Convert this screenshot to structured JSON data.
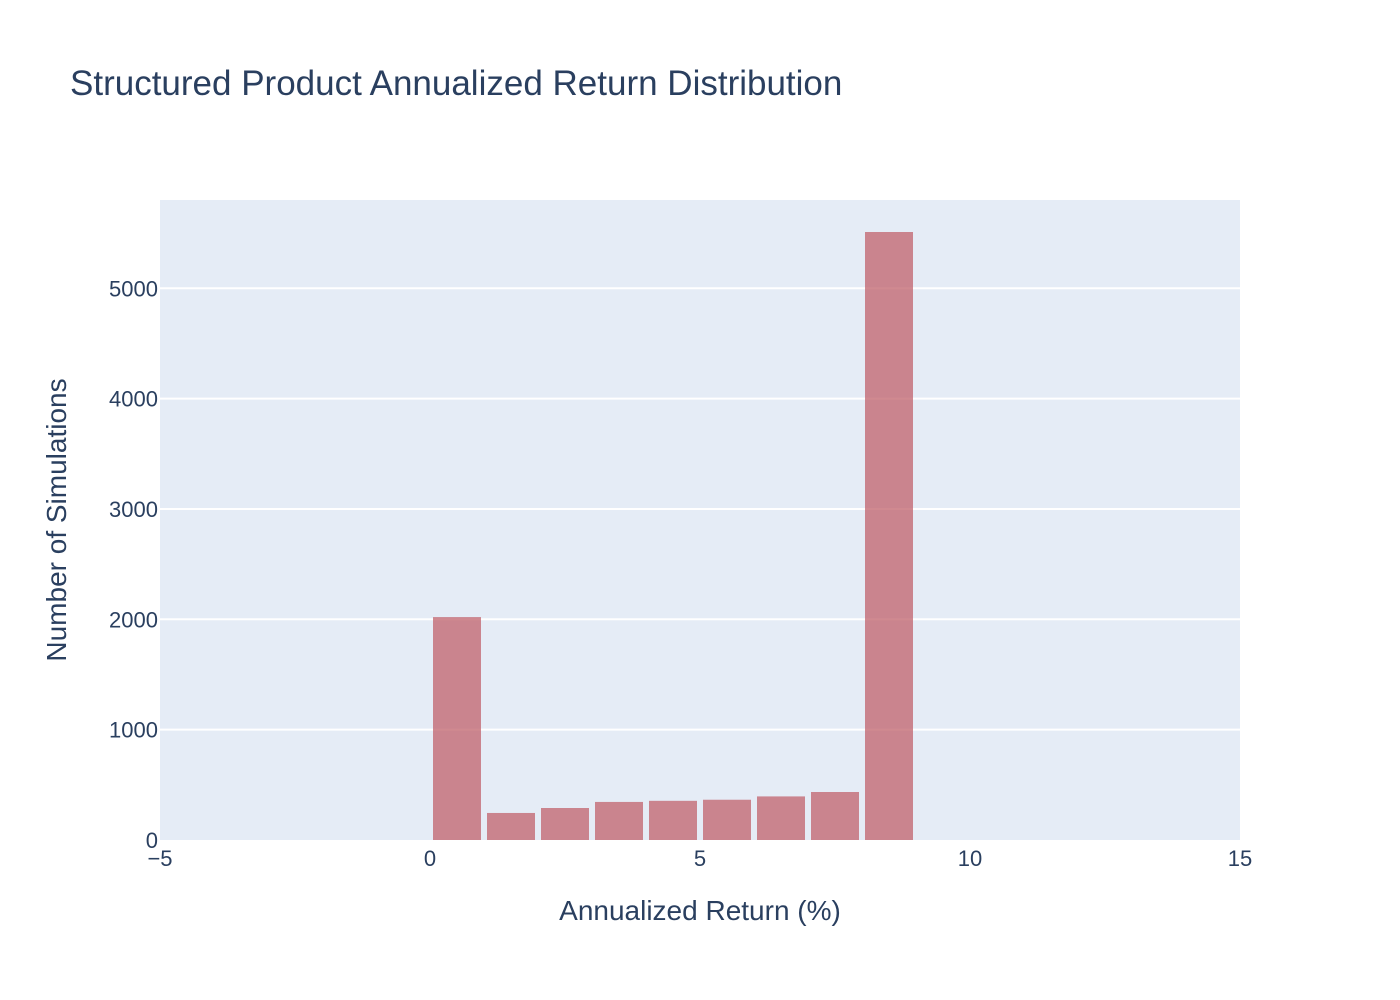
{
  "chart_data": {
    "type": "bar",
    "title": "Structured Product Annualized Return Distribution",
    "xlabel": "Annualized Return (%)",
    "ylabel": "Number of Simulations",
    "xlim": [
      -5,
      15
    ],
    "ylim": [
      0,
      5800
    ],
    "x_ticks": [
      -5,
      0,
      5,
      10,
      15
    ],
    "x_tick_labels": [
      "−5",
      "0",
      "5",
      "10",
      "15"
    ],
    "y_ticks": [
      0,
      1000,
      2000,
      3000,
      4000,
      5000
    ],
    "y_tick_labels": [
      "0",
      "1000",
      "2000",
      "3000",
      "4000",
      "5000"
    ],
    "bin_width": 1,
    "bins": [
      {
        "start": 0,
        "end": 1,
        "count": 2020
      },
      {
        "start": 1,
        "end": 2,
        "count": 245
      },
      {
        "start": 2,
        "end": 3,
        "count": 290
      },
      {
        "start": 3,
        "end": 4,
        "count": 345
      },
      {
        "start": 4,
        "end": 5,
        "count": 355
      },
      {
        "start": 5,
        "end": 6,
        "count": 365
      },
      {
        "start": 6,
        "end": 7,
        "count": 395
      },
      {
        "start": 7,
        "end": 8,
        "count": 435
      },
      {
        "start": 8,
        "end": 9,
        "count": 5510
      }
    ],
    "bar_color": "#c0626b",
    "bar_opacity": 0.75,
    "plot_background": "#e5ecf6",
    "grid": true,
    "grid_color": "#ffffff",
    "legend": "none"
  }
}
